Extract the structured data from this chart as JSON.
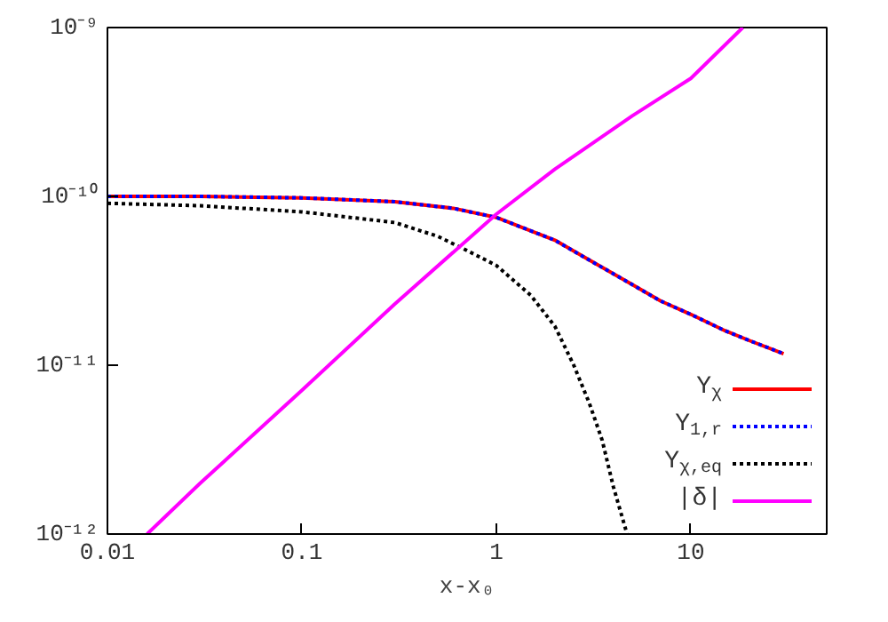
{
  "chart_data": {
    "type": "line",
    "xlabel": "x-x₀",
    "log": "xy",
    "xlim": [
      0.01,
      50
    ],
    "ylim": [
      1e-12,
      1e-09
    ],
    "xticks": [
      0.01,
      0.1,
      1,
      10
    ],
    "yticks": [
      {
        "value": 1e-12,
        "label": "10⁻¹²"
      },
      {
        "value": 1e-11,
        "label": "10⁻¹¹"
      },
      {
        "value": 1e-10,
        "label": "10⁻¹⁰"
      },
      {
        "value": 1e-09,
        "label": "10⁻⁹"
      }
    ],
    "grid": false,
    "legend": "bottom right",
    "series": [
      {
        "name": "Y$_{χ}$",
        "color": "#ff0000",
        "line_style": "solid",
        "x": [
          0.01,
          0.03,
          0.1,
          0.3,
          0.6,
          1,
          2,
          3,
          5,
          7,
          10,
          15,
          20,
          30
        ],
        "values": [
          1e-10,
          1e-10,
          9.8e-11,
          9.3e-11,
          8.5e-11,
          7.5e-11,
          5.5e-11,
          4.2e-11,
          3e-11,
          2.4e-11,
          2e-11,
          1.6e-11,
          1.4e-11,
          1.17e-11
        ]
      },
      {
        "name": "Y$_{1,r}$",
        "color": "#0000ff",
        "line_style": "dotted",
        "x": [
          0.01,
          0.03,
          0.1,
          0.3,
          0.6,
          1,
          2,
          3,
          5,
          7,
          10,
          15,
          20,
          30
        ],
        "values": [
          1e-10,
          1e-10,
          9.8e-11,
          9.3e-11,
          8.5e-11,
          7.5e-11,
          5.5e-11,
          4.2e-11,
          3e-11,
          2.4e-11,
          2e-11,
          1.6e-11,
          1.4e-11,
          1.17e-11
        ]
      },
      {
        "name": "Y$_{χ,eq}$",
        "color": "#000000",
        "line_style": "dotted",
        "x": [
          0.01,
          0.03,
          0.1,
          0.3,
          0.5,
          0.7,
          1,
          1.5,
          2,
          2.5,
          3,
          3.5,
          4,
          4.7
        ],
        "values": [
          9.1e-11,
          8.8e-11,
          8.1e-11,
          7e-11,
          5.8e-11,
          4.8e-11,
          3.9e-11,
          2.6e-11,
          1.7e-11,
          1e-11,
          6e-12,
          3.6e-12,
          1.9e-12,
          1e-12
        ]
      },
      {
        "name": "|δ|",
        "color": "#ff00ff",
        "line_style": "solid",
        "x": [
          0.016,
          0.03,
          0.1,
          0.3,
          1,
          2,
          3,
          5,
          10,
          18.5
        ],
        "values": [
          1e-12,
          2e-12,
          7.1e-12,
          2.3e-11,
          7.85e-11,
          1.45e-10,
          2e-10,
          3e-10,
          5e-10,
          1e-09
        ]
      }
    ]
  }
}
